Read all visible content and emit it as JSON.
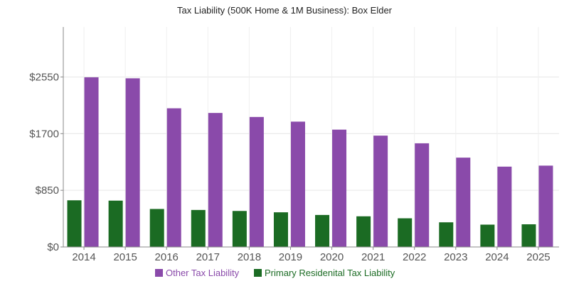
{
  "chart_data": {
    "type": "bar",
    "title": "Tax Liability (500K Home & 1M Business): Box Elder",
    "xlabel": "",
    "ylabel": "",
    "categories": [
      "2014",
      "2015",
      "2016",
      "2017",
      "2018",
      "2019",
      "2020",
      "2021",
      "2022",
      "2023",
      "2024",
      "2025"
    ],
    "ylim": [
      0,
      3300
    ],
    "y_ticks": [
      0,
      850,
      1700,
      2550
    ],
    "y_tick_labels": [
      "$0",
      "$850",
      "$1700",
      "$2550"
    ],
    "grid": true,
    "legend_position": "bottom",
    "series": [
      {
        "name": "Primary Residenital Tax Liability",
        "color": "#1b6b23",
        "values": [
          700,
          695,
          570,
          555,
          540,
          520,
          480,
          460,
          430,
          370,
          335,
          340
        ]
      },
      {
        "name": "Other Tax Liability",
        "color": "#8a4aaa",
        "values": [
          2545,
          2530,
          2080,
          2010,
          1950,
          1880,
          1760,
          1670,
          1555,
          1340,
          1205,
          1220
        ]
      }
    ]
  }
}
